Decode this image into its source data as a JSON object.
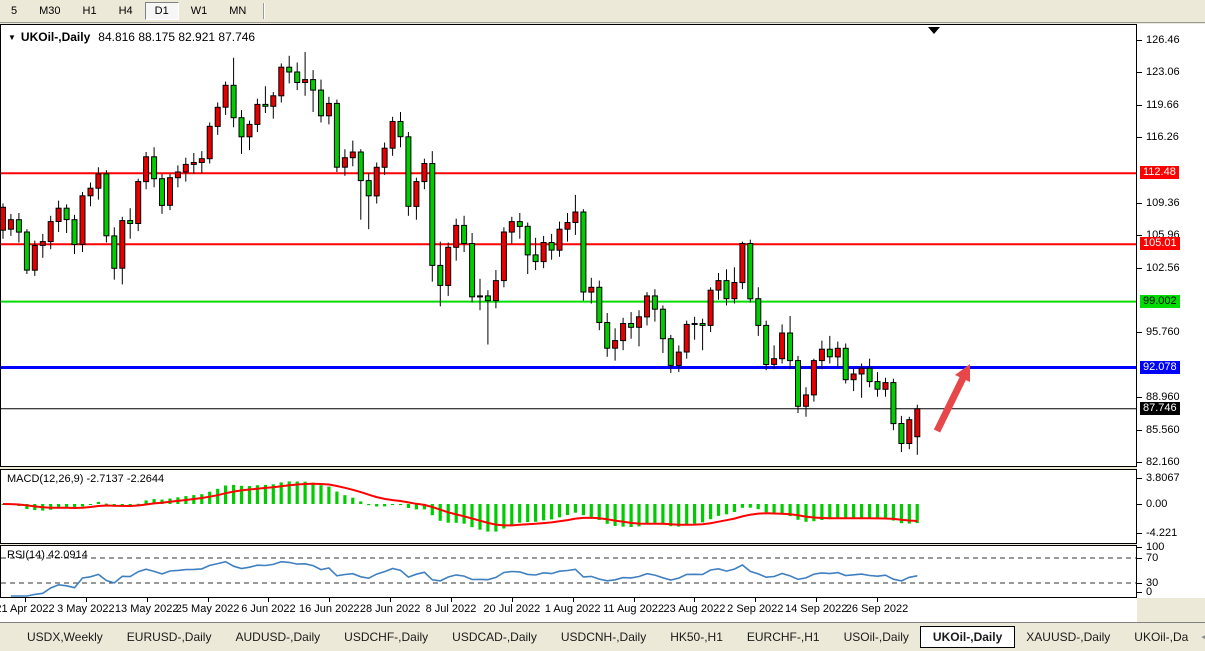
{
  "toolbar": {
    "timeframes": [
      "5",
      "M30",
      "H1",
      "H4",
      "D1",
      "W1",
      "MN"
    ],
    "active": "D1"
  },
  "window": {
    "title_symbol": "UKOil-,Daily",
    "title_ohlc": "84.816 88.175 82.921 87.746",
    "shift_marker": "▼"
  },
  "chart_data": {
    "type": "candlestick",
    "symbol": "UKOil-,Daily",
    "open": 84.816,
    "high": 88.175,
    "low": 82.921,
    "close": 87.746,
    "price_axis_ticks": [
      "126.46",
      "123.06",
      "119.66",
      "116.26",
      "109.36",
      "105.96",
      "102.56",
      "95.760",
      "88.960",
      "85.560",
      "82.160"
    ],
    "hlines": [
      {
        "price": "112.48",
        "color": "#ff0000",
        "text_color": "#ffffff",
        "width": 2
      },
      {
        "price": "105.01",
        "color": "#ff0000",
        "text_color": "#ffffff",
        "width": 2
      },
      {
        "price": "99.002",
        "color": "#00dd00",
        "text_color": "#000000",
        "width": 2
      },
      {
        "price": "92.078",
        "color": "#0000ff",
        "text_color": "#ffffff",
        "width": 3
      },
      {
        "price": "87.746",
        "color": "#000000",
        "text_color": "#ffffff",
        "width": 1
      }
    ],
    "date_labels": [
      "21 Apr 2022",
      "3 May 2022",
      "13 May 2022",
      "25 May 2022",
      "6 Jun 2022",
      "16 Jun 2022",
      "28 Jun 2022",
      "8 Jul 2022",
      "20 Jul 2022",
      "1 Aug 2022",
      "11 Aug 2022",
      "23 Aug 2022",
      "2 Sep 2022",
      "14 Sep 2022",
      "26 Sep 2022"
    ],
    "candles": [
      [
        106.5,
        109.3,
        105.6,
        108.9
      ],
      [
        106.6,
        108.2,
        105.9,
        107.6
      ],
      [
        107.6,
        108.3,
        105.2,
        106.3
      ],
      [
        106.3,
        106.6,
        101.9,
        102.3
      ],
      [
        102.3,
        105.4,
        101.7,
        104.9
      ],
      [
        104.9,
        106.1,
        103.6,
        105.3
      ],
      [
        105.3,
        108.0,
        104.5,
        107.4
      ],
      [
        107.4,
        109.6,
        106.3,
        108.8
      ],
      [
        108.8,
        109.2,
        106.2,
        107.6
      ],
      [
        107.6,
        108.1,
        104.0,
        105.0
      ],
      [
        105.0,
        110.5,
        104.2,
        110.1
      ],
      [
        110.1,
        111.5,
        109.0,
        110.9
      ],
      [
        110.9,
        113.1,
        109.7,
        112.4
      ],
      [
        112.4,
        112.8,
        105.2,
        105.9
      ],
      [
        105.9,
        106.8,
        101.3,
        102.5
      ],
      [
        102.5,
        107.9,
        100.8,
        107.5
      ],
      [
        107.5,
        108.8,
        105.6,
        107.2
      ],
      [
        107.2,
        111.9,
        106.4,
        111.6
      ],
      [
        111.6,
        114.7,
        110.8,
        114.2
      ],
      [
        114.2,
        115.2,
        111.0,
        111.9
      ],
      [
        111.9,
        112.4,
        108.2,
        109.1
      ],
      [
        109.1,
        112.4,
        108.6,
        112.0
      ],
      [
        112.0,
        113.3,
        111.0,
        112.6
      ],
      [
        112.6,
        114.1,
        111.6,
        113.4
      ],
      [
        113.4,
        114.6,
        112.4,
        113.6
      ],
      [
        113.6,
        114.8,
        112.5,
        114.0
      ],
      [
        114.0,
        117.8,
        113.5,
        117.4
      ],
      [
        117.4,
        119.9,
        116.5,
        119.4
      ],
      [
        119.4,
        122.1,
        118.6,
        121.7
      ],
      [
        121.7,
        124.6,
        117.3,
        118.3
      ],
      [
        118.3,
        119.1,
        114.5,
        116.3
      ],
      [
        116.3,
        118.0,
        114.9,
        117.6
      ],
      [
        117.6,
        120.3,
        116.8,
        119.7
      ],
      [
        119.7,
        121.6,
        118.8,
        119.5
      ],
      [
        119.5,
        121.0,
        118.2,
        120.6
      ],
      [
        120.6,
        124.0,
        119.9,
        123.6
      ],
      [
        123.6,
        124.8,
        121.9,
        123.1
      ],
      [
        123.1,
        124.1,
        121.2,
        122.0
      ],
      [
        122.0,
        125.2,
        120.6,
        122.3
      ],
      [
        122.3,
        123.3,
        118.9,
        121.2
      ],
      [
        121.2,
        122.3,
        117.8,
        118.5
      ],
      [
        118.5,
        120.5,
        117.6,
        119.8
      ],
      [
        119.8,
        120.2,
        112.6,
        113.1
      ],
      [
        113.1,
        115.0,
        112.2,
        114.1
      ],
      [
        114.1,
        115.9,
        113.2,
        114.7
      ],
      [
        114.7,
        115.0,
        107.6,
        111.7
      ],
      [
        111.7,
        112.5,
        106.6,
        110.1
      ],
      [
        110.1,
        113.6,
        109.3,
        113.1
      ],
      [
        113.1,
        115.7,
        112.3,
        115.1
      ],
      [
        115.1,
        118.4,
        114.3,
        117.9
      ],
      [
        117.9,
        118.9,
        115.2,
        116.3
      ],
      [
        116.3,
        116.8,
        108.0,
        109.0
      ],
      [
        109.0,
        112.0,
        107.6,
        111.6
      ],
      [
        111.6,
        114.0,
        110.8,
        113.5
      ],
      [
        113.5,
        114.8,
        101.1,
        102.8
      ],
      [
        102.8,
        105.3,
        98.5,
        100.7
      ],
      [
        100.7,
        105.2,
        99.6,
        104.7
      ],
      [
        104.7,
        107.7,
        103.3,
        107.0
      ],
      [
        107.0,
        108.0,
        104.2,
        105.1
      ],
      [
        105.1,
        106.2,
        98.9,
        99.5
      ],
      [
        99.5,
        101.4,
        98.1,
        99.6
      ],
      [
        99.6,
        100.2,
        94.5,
        99.1
      ],
      [
        99.1,
        102.3,
        98.3,
        101.2
      ],
      [
        101.2,
        106.8,
        100.5,
        106.3
      ],
      [
        106.3,
        107.9,
        105.1,
        107.4
      ],
      [
        107.4,
        108.3,
        105.6,
        106.9
      ],
      [
        106.9,
        107.3,
        101.9,
        103.9
      ],
      [
        103.9,
        105.7,
        102.3,
        103.2
      ],
      [
        103.2,
        105.9,
        102.5,
        105.2
      ],
      [
        105.2,
        106.1,
        103.4,
        104.4
      ],
      [
        104.4,
        107.4,
        103.7,
        106.6
      ],
      [
        106.6,
        108.3,
        105.3,
        107.3
      ],
      [
        107.3,
        110.2,
        106.0,
        108.4
      ],
      [
        108.4,
        108.7,
        99.1,
        100.0
      ],
      [
        100.0,
        101.5,
        98.8,
        100.5
      ],
      [
        100.5,
        101.2,
        96.0,
        96.8
      ],
      [
        96.8,
        97.8,
        93.2,
        94.1
      ],
      [
        94.1,
        96.2,
        92.8,
        94.9
      ],
      [
        94.9,
        97.3,
        93.9,
        96.7
      ],
      [
        96.7,
        97.9,
        95.1,
        96.3
      ],
      [
        96.3,
        98.1,
        94.3,
        97.4
      ],
      [
        97.4,
        100.0,
        96.5,
        99.6
      ],
      [
        99.6,
        100.3,
        96.9,
        98.2
      ],
      [
        98.2,
        98.6,
        93.6,
        95.1
      ],
      [
        95.1,
        95.5,
        91.5,
        92.3
      ],
      [
        92.3,
        94.4,
        91.6,
        93.7
      ],
      [
        93.7,
        97.0,
        93.0,
        96.6
      ],
      [
        96.6,
        97.4,
        95.0,
        96.7
      ],
      [
        96.7,
        97.2,
        93.9,
        96.5
      ],
      [
        96.5,
        100.5,
        95.8,
        100.2
      ],
      [
        100.2,
        102.0,
        99.2,
        101.2
      ],
      [
        101.2,
        102.4,
        98.6,
        99.3
      ],
      [
        99.3,
        102.6,
        98.8,
        101.0
      ],
      [
        101.0,
        105.3,
        100.3,
        105.1
      ],
      [
        105.1,
        105.5,
        98.9,
        99.3
      ],
      [
        99.3,
        100.5,
        95.4,
        96.5
      ],
      [
        96.5,
        97.0,
        91.8,
        92.4
      ],
      [
        92.4,
        94.4,
        91.9,
        93.0
      ],
      [
        93.0,
        96.6,
        92.5,
        95.7
      ],
      [
        95.7,
        97.5,
        91.9,
        92.8
      ],
      [
        92.8,
        93.3,
        87.3,
        88.0
      ],
      [
        88.0,
        90.0,
        86.9,
        89.2
      ],
      [
        89.2,
        93.0,
        88.5,
        92.8
      ],
      [
        92.8,
        94.9,
        91.9,
        94.0
      ],
      [
        94.0,
        95.4,
        92.5,
        93.2
      ],
      [
        93.2,
        94.8,
        92.1,
        94.1
      ],
      [
        94.1,
        94.6,
        90.4,
        90.8
      ],
      [
        90.8,
        92.0,
        89.6,
        91.4
      ],
      [
        91.4,
        92.5,
        88.9,
        92.0
      ],
      [
        92.0,
        93.0,
        90.0,
        90.6
      ],
      [
        90.6,
        91.6,
        89.0,
        89.8
      ],
      [
        89.8,
        91.0,
        89.0,
        90.5
      ],
      [
        90.5,
        90.9,
        85.5,
        86.2
      ],
      [
        86.2,
        87.0,
        83.2,
        84.1
      ],
      [
        84.1,
        86.9,
        83.5,
        86.6
      ],
      [
        84.816,
        88.175,
        82.921,
        87.746
      ]
    ],
    "indicators": {
      "macd": {
        "label": "MACD(12,26,9) -2.7137 -2.2644",
        "params": [
          12,
          26,
          9
        ],
        "values_text": [
          "-2.7137",
          "-2.2644"
        ],
        "axis_ticks": [
          "3.8067",
          "0.00",
          "-4.221"
        ]
      },
      "rsi": {
        "label": "RSI(14) 42.0914",
        "period": 14,
        "value_text": "42.0914",
        "axis_ticks": [
          "100",
          "70",
          "30",
          "0"
        ],
        "levels": [
          70,
          30
        ]
      }
    },
    "annotations": {
      "arrow": {
        "direction": "up-right",
        "color": "#e8474a"
      }
    }
  },
  "colors": {
    "bull_candle": "#e60000",
    "bear_candle": "#00cc00",
    "wick": "#000000",
    "macd_histogram": "#00cc00",
    "macd_signal": "#ff0000",
    "rsi_line": "#4080c0",
    "chart_bg": "#ffffff",
    "frame_bg": "#ece9d8"
  },
  "tabs": {
    "items": [
      "USDX,Weekly",
      "EURUSD-,Daily",
      "AUDUSD-,Daily",
      "USDCHF-,Daily",
      "USDCAD-,Daily",
      "USDCNH-,Daily",
      "HK50-,H1",
      "EURCHF-,H1",
      "USOil-,Daily",
      "UKOil-,Daily",
      "XAUUSD-,Daily",
      "UKOil-,Da"
    ],
    "active": "UKOil-,Daily",
    "left_arrow": "◄",
    "right_arrow": "►"
  }
}
